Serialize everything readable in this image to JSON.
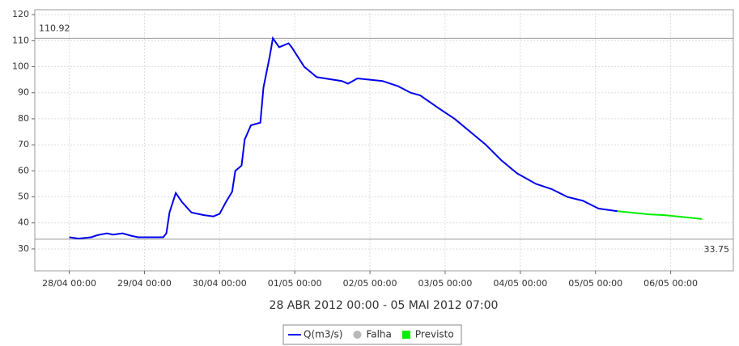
{
  "chart_data": {
    "type": "line",
    "x_label": "28 ABR 2012 00:00 - 05 MAI 2012 07:00",
    "xlim": [
      "2012-04-27 13:00",
      "2012-05-06 20:00"
    ],
    "xticks": [
      {
        "value": "2012-04-28 00:00",
        "label": "28/04 00:00"
      },
      {
        "value": "2012-04-29 00:00",
        "label": "29/04 00:00"
      },
      {
        "value": "2012-04-30 00:00",
        "label": "30/04 00:00"
      },
      {
        "value": "2012-05-01 00:00",
        "label": "01/05 00:00"
      },
      {
        "value": "2012-05-02 00:00",
        "label": "02/05 00:00"
      },
      {
        "value": "2012-05-03 00:00",
        "label": "03/05 00:00"
      },
      {
        "value": "2012-05-04 00:00",
        "label": "04/05 00:00"
      },
      {
        "value": "2012-05-05 00:00",
        "label": "05/05 00:00"
      },
      {
        "value": "2012-05-06 00:00",
        "label": "06/05 00:00"
      }
    ],
    "ylim": [
      21.6,
      121.9
    ],
    "yticks": [
      30,
      40,
      50,
      60,
      70,
      80,
      90,
      100,
      110,
      120
    ],
    "grid": true,
    "reference_lines": [
      110.92,
      33.75
    ],
    "series": [
      {
        "name": "Q(m3/s)",
        "color": "#0000ee",
        "x": [
          "2012-04-28 00:00",
          "2012-04-28 03:00",
          "2012-04-28 07:00",
          "2012-04-28 09:00",
          "2012-04-28 12:00",
          "2012-04-28 14:00",
          "2012-04-28 17:00",
          "2012-04-28 20:00",
          "2012-04-28 22:00",
          "2012-04-29 06:00",
          "2012-04-29 07:00",
          "2012-04-29 08:00",
          "2012-04-29 10:00",
          "2012-04-29 12:00",
          "2012-04-29 15:00",
          "2012-04-29 19:00",
          "2012-04-29 22:00",
          "2012-04-30 00:00",
          "2012-04-30 02:00",
          "2012-04-30 04:00",
          "2012-04-30 05:00",
          "2012-04-30 07:00",
          "2012-04-30 08:00",
          "2012-04-30 10:00",
          "2012-04-30 13:00",
          "2012-04-30 14:00",
          "2012-04-30 16:00",
          "2012-04-30 17:00",
          "2012-04-30 19:00",
          "2012-04-30 22:00",
          "2012-04-30 23:00",
          "2012-05-01 03:00",
          "2012-05-01 07:00",
          "2012-05-01 15:00",
          "2012-05-01 17:00",
          "2012-05-01 20:00",
          "2012-05-02 00:00",
          "2012-05-02 04:00",
          "2012-05-02 09:00",
          "2012-05-02 13:00",
          "2012-05-02 16:00",
          "2012-05-02 22:00",
          "2012-05-03 03:00",
          "2012-05-03 08:00",
          "2012-05-03 13:00",
          "2012-05-03 18:00",
          "2012-05-03 23:00",
          "2012-05-04 05:00",
          "2012-05-04 10:00",
          "2012-05-04 15:00",
          "2012-05-04 20:00",
          "2012-05-05 01:00",
          "2012-05-05 07:00"
        ],
        "values": [
          34.5,
          34.0,
          34.5,
          35.3,
          36.0,
          35.5,
          36.0,
          35.0,
          34.5,
          34.5,
          36.0,
          44.0,
          51.5,
          48.0,
          44.0,
          43.0,
          42.5,
          43.5,
          48.0,
          52.0,
          60.0,
          62.0,
          72.0,
          77.5,
          78.5,
          92.0,
          104.0,
          110.92,
          107.5,
          109.0,
          107.5,
          100.0,
          96.0,
          94.5,
          93.5,
          95.5,
          95.0,
          94.5,
          92.5,
          90.0,
          89.0,
          84.0,
          80.0,
          75.0,
          70.0,
          64.0,
          59.0,
          55.0,
          53.0,
          50.0,
          48.5,
          45.5,
          44.5
        ]
      },
      {
        "name": "Falha",
        "color": "#b8b8b8",
        "x": [],
        "values": []
      },
      {
        "name": "Previsto",
        "color": "#00ee00",
        "x": [
          "2012-05-05 07:00",
          "2012-05-05 17:00",
          "2012-05-05 22:00",
          "2012-05-06 06:00",
          "2012-05-06 10:00"
        ],
        "values": [
          44.5,
          43.3,
          43.0,
          42.0,
          41.5
        ]
      }
    ]
  }
}
